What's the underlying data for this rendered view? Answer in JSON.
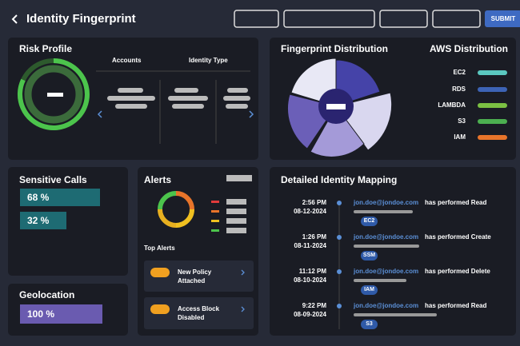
{
  "header": {
    "title": "Identity Fingerprint",
    "submit": "SUBMIT"
  },
  "risk_profile": {
    "title": "Risk Profile",
    "columns": [
      "Accounts",
      "Identity Type"
    ]
  },
  "fingerprint_distribution": {
    "title": "Fingerprint Distribution"
  },
  "aws_distribution": {
    "title": "AWS Distribution",
    "items": [
      "EC2",
      "RDS",
      "LAMBDA",
      "S3",
      "IAM"
    ]
  },
  "sensitive_calls": {
    "title": "Sensitive Calls",
    "items": [
      "68 %",
      "32 %"
    ]
  },
  "geolocation": {
    "title": "Geolocation",
    "items": [
      "100 %"
    ]
  },
  "alerts": {
    "title": "Alerts",
    "top_alerts_title": "Top Alerts",
    "top_alerts": [
      "New Policy Attached",
      "Access Block Disabled"
    ]
  },
  "identity_mapping": {
    "title": "Detailed Identity Mapping",
    "entries": [
      {
        "time": "2:56 PM",
        "date": "08-12-2024",
        "user": "jon.doe@jondoe.com",
        "action": "has performed Read",
        "tag": "EC2"
      },
      {
        "time": "1:26 PM",
        "date": "08-11-2024",
        "user": "jon.doe@jondoe.com",
        "action": "has performed Create",
        "tag": "SSM"
      },
      {
        "time": "11:12 PM",
        "date": "08-10-2024",
        "user": "jon.doe@jondoe.com",
        "action": "has performed Delete",
        "tag": "IAM"
      },
      {
        "time": "9:22 PM",
        "date": "08-09-2024",
        "user": "jon.doe@jondoe.com",
        "action": "has performed Read",
        "tag": "S3"
      }
    ]
  }
}
